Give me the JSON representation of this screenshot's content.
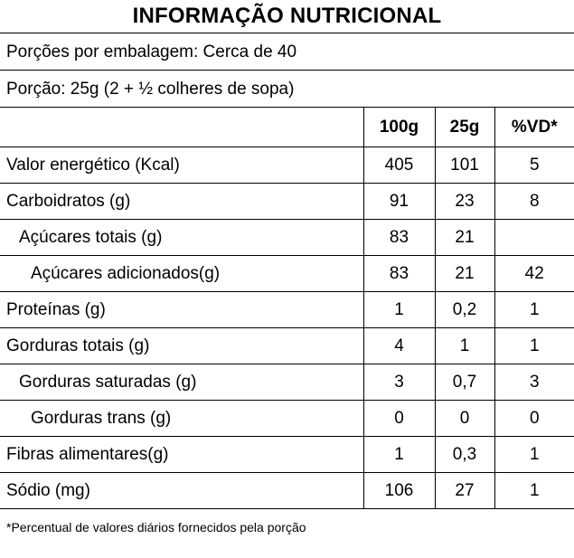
{
  "title": "INFORMAÇÃO NUTRICIONAL",
  "servings_per_package": "Porções por embalagem: Cerca de 40",
  "serving_size": "Porção: 25g (2 + ½ colheres de sopa)",
  "columns": [
    "100g",
    "25g",
    "%VD*"
  ],
  "rows": [
    {
      "name": "Valor energético (Kcal)",
      "indent": 0,
      "v100": "405",
      "v25": "101",
      "vd": "5"
    },
    {
      "name": "Carboidratos (g)",
      "indent": 0,
      "v100": "91",
      "v25": "23",
      "vd": "8"
    },
    {
      "name": "Açúcares totais (g)",
      "indent": 1,
      "v100": "83",
      "v25": "21",
      "vd": ""
    },
    {
      "name": "Açúcares adicionados(g)",
      "indent": 2,
      "v100": "83",
      "v25": "21",
      "vd": "42"
    },
    {
      "name": "Proteínas (g)",
      "indent": 0,
      "v100": "1",
      "v25": "0,2",
      "vd": "1"
    },
    {
      "name": "Gorduras totais (g)",
      "indent": 0,
      "v100": "4",
      "v25": "1",
      "vd": "1"
    },
    {
      "name": "Gorduras saturadas (g)",
      "indent": 1,
      "v100": "3",
      "v25": "0,7",
      "vd": "3"
    },
    {
      "name": "Gorduras trans (g)",
      "indent": 2,
      "v100": "0",
      "v25": "0",
      "vd": "0"
    },
    {
      "name": "Fibras alimentares(g)",
      "indent": 0,
      "v100": "1",
      "v25": "0,3",
      "vd": "1"
    },
    {
      "name": "Sódio (mg)",
      "indent": 0,
      "v100": "106",
      "v25": "27",
      "vd": "1"
    }
  ],
  "footnote": "*Percentual de valores diários fornecidos pela porção"
}
